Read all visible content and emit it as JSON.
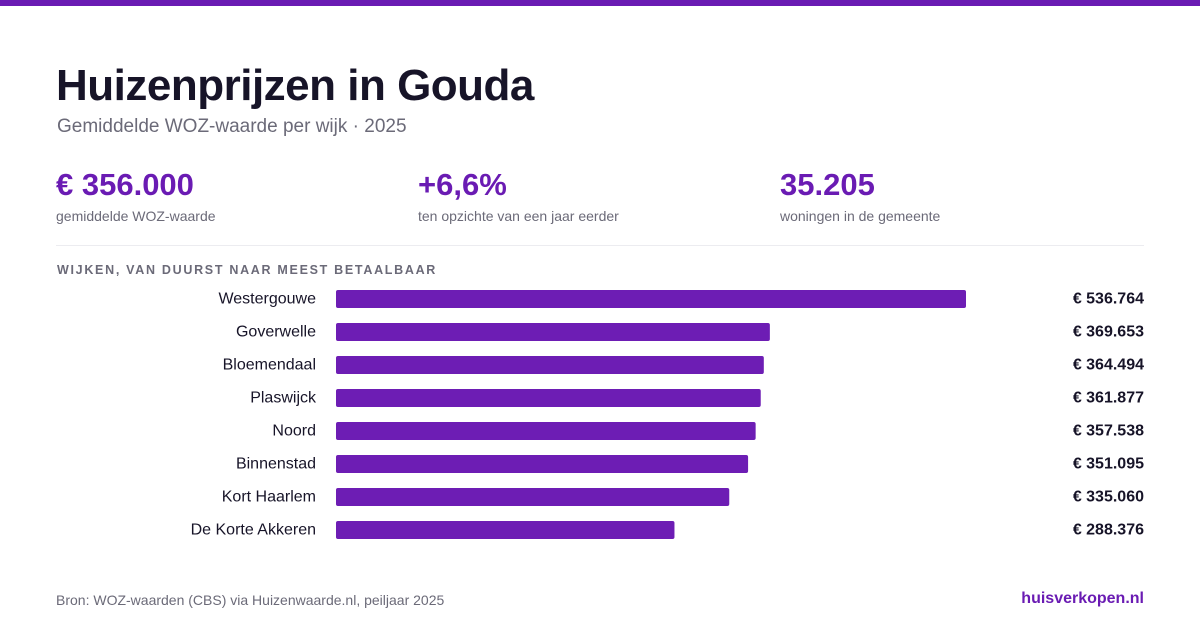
{
  "header": {
    "title": "Huizenprijzen in Gouda",
    "subtitle": "Gemiddelde WOZ-waarde per wijk · 2025"
  },
  "stats": [
    {
      "value": "€ 356.000",
      "label": "gemiddelde WOZ-waarde"
    },
    {
      "value": "+6,6%",
      "label": "ten opzichte van een jaar eerder"
    },
    {
      "value": "35.205",
      "label": "woningen in de gemeente"
    }
  ],
  "section_title": "WIJKEN, VAN DUURST NAAR MEEST BETAALBAAR",
  "chart_data": {
    "type": "bar",
    "orientation": "horizontal",
    "categories": [
      "Westergouwe",
      "Goverwelle",
      "Bloemendaal",
      "Plaswijck",
      "Noord",
      "Binnenstad",
      "Kort Haarlem",
      "De Korte Akkeren"
    ],
    "values": [
      536764,
      369653,
      364494,
      361877,
      357538,
      351095,
      335060,
      288376
    ],
    "value_labels": [
      "€ 536.764",
      "€ 369.653",
      "€ 364.494",
      "€ 361.877",
      "€ 357.538",
      "€ 351.095",
      "€ 335.060",
      "€ 288.376"
    ],
    "xlim": [
      0,
      536764
    ],
    "grid": false,
    "legend": "none"
  },
  "footer": {
    "source": "Bron: WOZ-waarden (CBS) via Huizenwaarde.nl, peiljaar 2025",
    "brand": "huisverkopen.nl"
  },
  "colors": {
    "accent": "#6a1bb3",
    "bar": "#6d1db4",
    "text_dark": "#171428",
    "text_muted": "#6b6a78",
    "divider": "#ececf0"
  }
}
